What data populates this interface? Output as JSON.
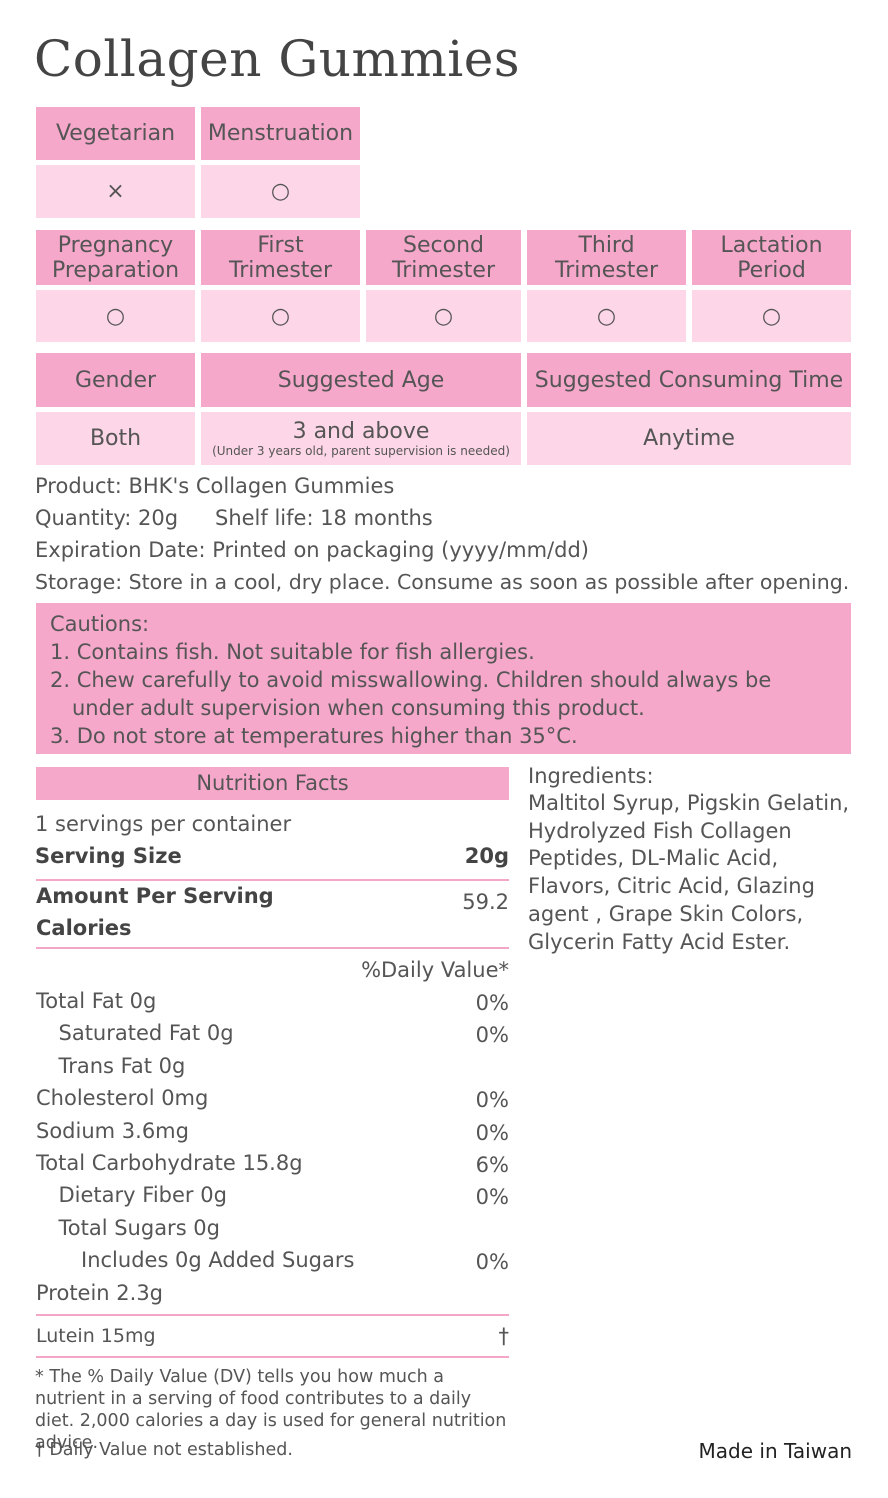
{
  "title": "Collagen Gummies",
  "suitability": {
    "row1": {
      "headers": [
        "Vegetarian",
        "Menstruation"
      ],
      "values": [
        "×",
        "○"
      ]
    },
    "row2": {
      "headers": [
        "Pregnancy Preparation",
        "First Trimester",
        "Second Trimester",
        "Third Trimester",
        "Lactation Period"
      ],
      "values": [
        "○",
        "○",
        "○",
        "○",
        "○"
      ]
    },
    "row3": {
      "headers": [
        "Gender",
        "Suggested Age",
        "Suggested Consuming Time"
      ],
      "values": [
        "Both",
        "3 and above",
        "Anytime"
      ],
      "age_note": "(Under 3 years old, parent supervision is needed)"
    }
  },
  "product_info": {
    "product": "Product: BHK's Collagen Gummies",
    "quantity": "Quantity: 20g",
    "shelf_life": "Shelf life: 18 months",
    "expiration": "Expiration Date: Printed on packaging (yyyy/mm/dd)",
    "storage": "Storage: Store in a cool, dry place. Consume as soon as possible after opening."
  },
  "cautions": {
    "title": "Cautions:",
    "items": [
      "1. Contains fish. Not suitable for fish allergies.",
      "2. Chew carefully to avoid misswallowing. Children should always be under adult supervision when consuming this product.",
      "3. Do not store at temperatures higher than 35°C."
    ]
  },
  "nutrition": {
    "title": "Nutrition Facts",
    "servings": "1 servings per container",
    "serving_size": {
      "label": "Serving Size",
      "value": "20g"
    },
    "amount_per_serving": "Amount Per Serving",
    "calories": {
      "label": "Calories",
      "value": "59.2"
    },
    "dv_header": "%Daily Value*",
    "rows": [
      {
        "label": "Total Fat 0g",
        "dv": "0%",
        "sub": [
          {
            "label": "Saturated Fat 0g",
            "dv": "0%"
          },
          {
            "label": "Trans Fat 0g"
          }
        ]
      },
      {
        "label": "Cholesterol 0mg",
        "dv": "0%"
      },
      {
        "label": "Sodium 3.6mg",
        "dv": "0%"
      },
      {
        "label": "Total Carbohydrate 15.8g",
        "dv": "6%",
        "sub": [
          {
            "label": "Dietary Fiber 0g",
            "dv": "0%"
          },
          {
            "label": "Total Sugars 0g",
            "sub": [
              {
                "label": "Includes 0g Added Sugars",
                "dv": "0%"
              }
            ]
          }
        ]
      },
      {
        "label": "Protein 2.3g"
      }
    ],
    "lutein": {
      "label": "Lutein 15mg",
      "dv": "†"
    },
    "footnotes": [
      "* The % Daily Value (DV) tells you how much a nutrient in a serving of food contributes to a daily diet. 2,000 calories a day is used for general nutrition advice.",
      "† Daily Value not established."
    ]
  },
  "ingredients": {
    "title": "Ingredients:",
    "text": "Maltitol Syrup, Pigskin Gelatin, Hydrolyzed Fish Collagen Peptides, DL-Malic Acid, Flavors, Citric Acid, Glazing agent , Grape Skin Colors, Glycerin Fatty Acid Ester."
  },
  "origin": "Made in Taiwan"
}
